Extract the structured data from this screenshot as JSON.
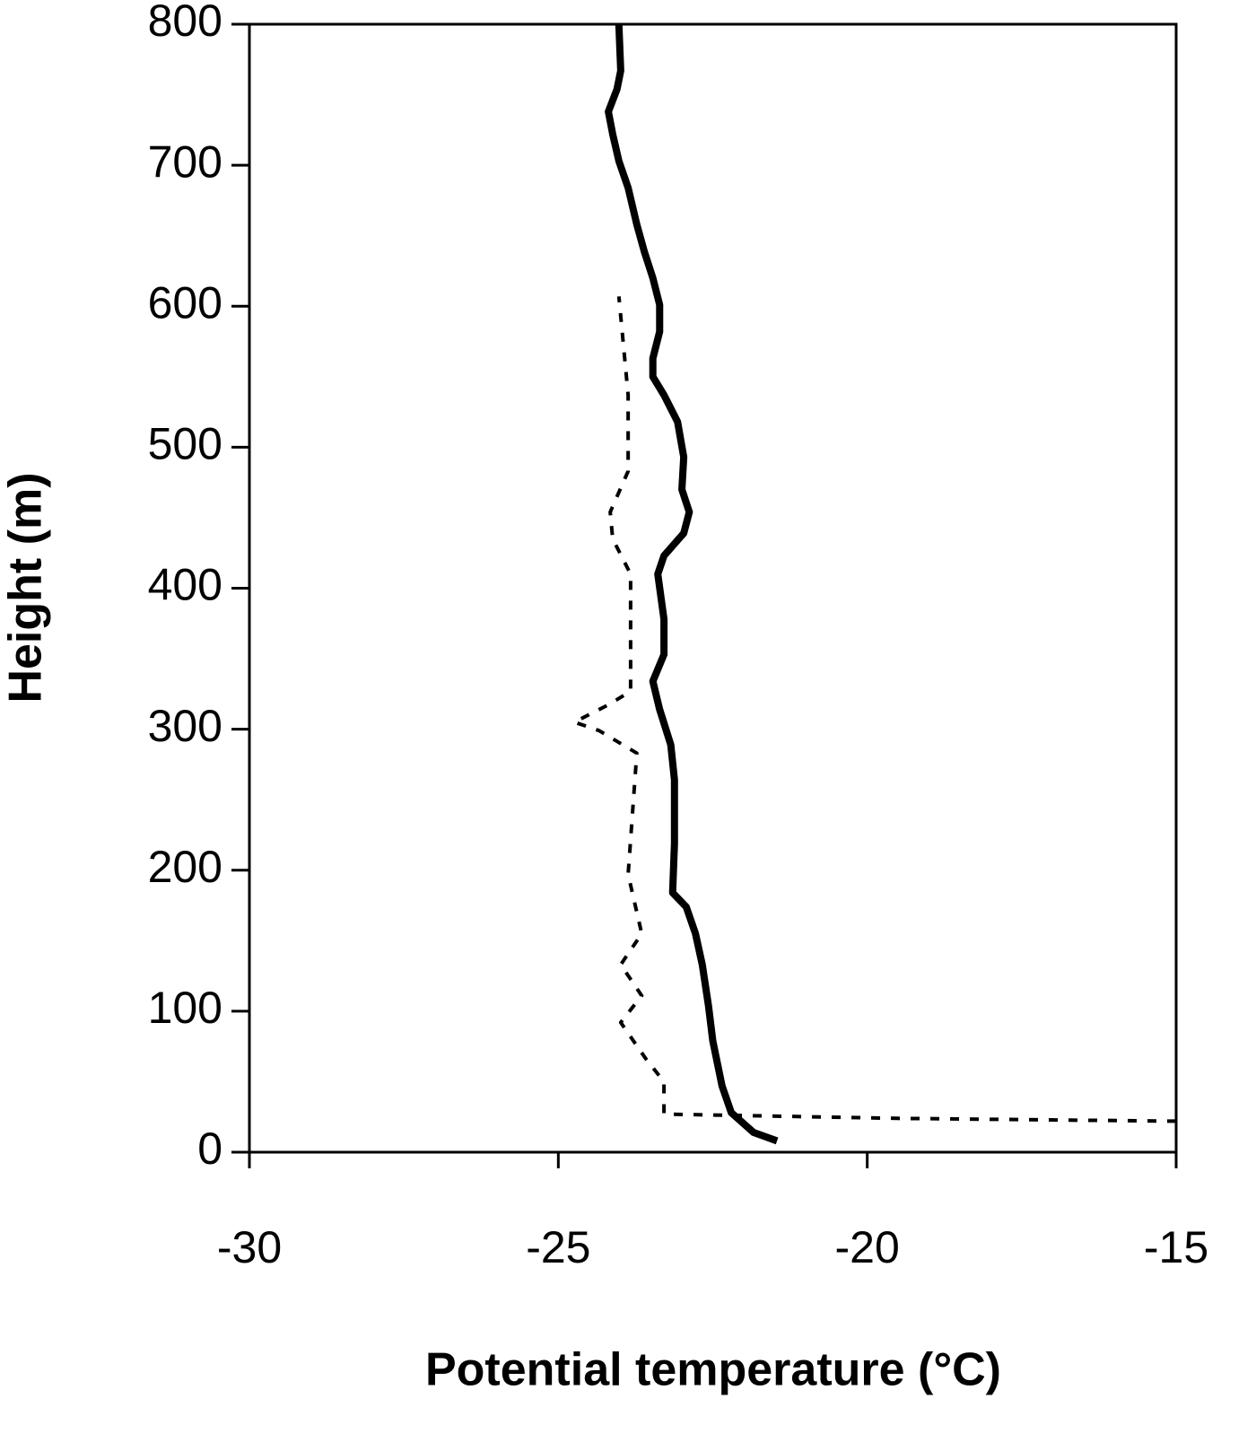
{
  "chart_data": {
    "type": "line",
    "x_label": "Potential  temperature (°C)",
    "y_label": "Height (m)",
    "xlim": [
      -30,
      -15
    ],
    "xticks": [
      -30,
      -25,
      -20,
      -15
    ],
    "ylim": [
      0,
      800
    ],
    "yticks": [
      0,
      100,
      200,
      300,
      400,
      500,
      600,
      700,
      800
    ],
    "series": [
      {
        "color": "#000000",
        "style": "solid",
        "x": [
          -21.46,
          -21.84,
          -22.2,
          -22.35,
          -22.5,
          -22.57,
          -22.67,
          -22.78,
          -22.93,
          -23.15,
          -23.12,
          -23.12,
          -23.18,
          -23.36,
          -23.47,
          -23.29,
          -23.29,
          -23.39,
          -23.29,
          -22.97,
          -22.88,
          -23.0,
          -22.97,
          -23.07,
          -23.29,
          -23.47,
          -23.47,
          -23.36,
          -23.36,
          -23.47,
          -23.61,
          -23.73,
          -23.87,
          -24.02,
          -24.12,
          -24.19,
          -24.05,
          -23.99,
          -24.02
        ],
        "y": [
          8,
          14,
          28,
          47,
          79,
          104,
          133,
          155,
          174,
          184,
          219,
          264,
          289,
          314,
          334,
          353,
          378,
          410,
          423,
          439,
          454,
          470,
          493,
          518,
          537,
          550,
          563,
          582,
          601,
          620,
          639,
          658,
          684,
          703,
          722,
          738,
          754,
          767,
          800
        ]
      },
      {
        "color": "#000000",
        "style": "dotted",
        "x": [
          -15.0,
          -19.52,
          -23.29,
          -23.29,
          -23.58,
          -23.99,
          -23.65,
          -23.99,
          -23.65,
          -23.87,
          -23.73,
          -24.34,
          -24.74,
          -24.16,
          -23.83,
          -23.83,
          -24.12,
          -24.16,
          -23.87,
          -23.87,
          -24.02
        ],
        "y": [
          22,
          24,
          27,
          50,
          66,
          92,
          111,
          133,
          155,
          197,
          283,
          299,
          305,
          318,
          327,
          410,
          435,
          454,
          483,
          537,
          607
        ]
      }
    ]
  }
}
